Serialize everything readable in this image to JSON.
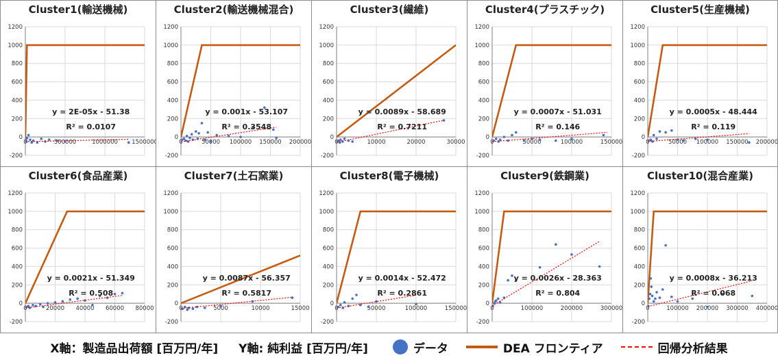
{
  "legend": {
    "x_axis_label": "X軸：製造品出荷額 [百万円/年]",
    "y_axis_label": "Y軸: 純利益 [百万円/年]",
    "data_label": "データ",
    "frontier_label": "DEA フロンティア",
    "regression_label": "回帰分析結果"
  },
  "colors": {
    "data": "#4472c4",
    "frontier": "#c55a11",
    "regression": "#ff0000"
  },
  "chart_data": [
    {
      "type": "scatter",
      "title": "Cluster1(輸送機械)",
      "xlim": [
        0,
        1500000
      ],
      "xticks": [
        0,
        500000,
        1000000,
        1500000
      ],
      "xtick_labels": [
        "0",
        "500000",
        "1000000",
        "1500000"
      ],
      "ylim": [
        -200,
        1200
      ],
      "yticks": [
        -200,
        0,
        200,
        400,
        600,
        800,
        1000,
        1200
      ],
      "equation": "y = 2E-05x - 51.38",
      "r2": "R² = 0.0107",
      "slope": 2e-05,
      "intercept": -51.38,
      "reg_x": [
        0,
        1300000
      ],
      "frontier": [
        [
          0,
          0
        ],
        [
          20000,
          1000
        ],
        [
          1500000,
          1000
        ]
      ],
      "points": [
        [
          5000,
          -40
        ],
        [
          10000,
          -20
        ],
        [
          15000,
          -50
        ],
        [
          20000,
          -10
        ],
        [
          40000,
          20
        ],
        [
          60000,
          -30
        ],
        [
          100000,
          -40
        ],
        [
          150000,
          -60
        ],
        [
          200000,
          -20
        ],
        [
          250000,
          -50
        ],
        [
          300000,
          -30
        ],
        [
          400000,
          -40
        ],
        [
          500000,
          -50
        ],
        [
          80000,
          -60
        ],
        [
          1300000,
          -60
        ]
      ]
    },
    {
      "type": "scatter",
      "title": "Cluster2(輸送機械混合)",
      "xlim": [
        0,
        200000
      ],
      "xticks": [
        0,
        50000,
        100000,
        150000,
        200000
      ],
      "xtick_labels": [
        "0",
        "50000",
        "100000",
        "150000",
        "200000"
      ],
      "ylim": [
        -200,
        1200
      ],
      "yticks": [
        -200,
        0,
        200,
        400,
        600,
        800,
        1000,
        1200
      ],
      "equation": "y = 0.001x - 53.107",
      "r2": "R² = 0.3548",
      "slope": 0.001,
      "intercept": -53.107,
      "reg_x": [
        0,
        160000
      ],
      "frontier": [
        [
          0,
          0
        ],
        [
          35000,
          1000
        ],
        [
          200000,
          1000
        ]
      ],
      "points": [
        [
          2000,
          -30
        ],
        [
          5000,
          -20
        ],
        [
          8000,
          -40
        ],
        [
          10000,
          10
        ],
        [
          12000,
          -50
        ],
        [
          15000,
          -10
        ],
        [
          18000,
          30
        ],
        [
          20000,
          -30
        ],
        [
          25000,
          60
        ],
        [
          28000,
          -20
        ],
        [
          30000,
          40
        ],
        [
          35000,
          150
        ],
        [
          40000,
          -30
        ],
        [
          45000,
          50
        ],
        [
          50000,
          -50
        ],
        [
          60000,
          20
        ],
        [
          80000,
          10
        ],
        [
          100000,
          0
        ],
        [
          120000,
          100
        ],
        [
          140000,
          320
        ],
        [
          155000,
          80
        ],
        [
          160000,
          -10
        ]
      ]
    },
    {
      "type": "scatter",
      "title": "Cluster3(繊維)",
      "xlim": [
        0,
        30000
      ],
      "xticks": [
        0,
        10000,
        20000,
        30000
      ],
      "xtick_labels": [
        "0",
        "10000",
        "20000",
        "30000"
      ],
      "ylim": [
        -200,
        1200
      ],
      "yticks": [
        -200,
        0,
        200,
        400,
        600,
        800,
        1000,
        1200
      ],
      "equation": "y = 0.0089x - 58.689",
      "r2": "R² = 0.7211",
      "slope": 0.0089,
      "intercept": -58.689,
      "reg_x": [
        0,
        27000
      ],
      "frontier": [
        [
          0,
          0
        ],
        [
          30000,
          1000
        ]
      ],
      "points": [
        [
          200,
          -50
        ],
        [
          500,
          -40
        ],
        [
          800,
          -60
        ],
        [
          1000,
          -30
        ],
        [
          1500,
          -50
        ],
        [
          2000,
          -20
        ],
        [
          3000,
          -40
        ],
        [
          4000,
          -50
        ],
        [
          27000,
          180
        ]
      ]
    },
    {
      "type": "scatter",
      "title": "Cluster4(プラスチック)",
      "xlim": [
        0,
        150000
      ],
      "xticks": [
        0,
        50000,
        100000,
        150000
      ],
      "xtick_labels": [
        "0",
        "50000",
        "100000",
        "150000"
      ],
      "ylim": [
        -200,
        1200
      ],
      "yticks": [
        -200,
        0,
        200,
        400,
        600,
        800,
        1000,
        1200
      ],
      "equation": "y = 0.0007x - 51.031",
      "r2": "R² = 0.146",
      "slope": 0.0007,
      "intercept": -51.031,
      "reg_x": [
        0,
        145000
      ],
      "frontier": [
        [
          0,
          0
        ],
        [
          30000,
          1000
        ],
        [
          150000,
          1000
        ]
      ],
      "points": [
        [
          2000,
          -40
        ],
        [
          5000,
          -20
        ],
        [
          8000,
          -50
        ],
        [
          10000,
          -30
        ],
        [
          15000,
          0
        ],
        [
          20000,
          -40
        ],
        [
          25000,
          20
        ],
        [
          30000,
          50
        ],
        [
          40000,
          -40
        ],
        [
          50000,
          -20
        ],
        [
          60000,
          -30
        ],
        [
          80000,
          -40
        ],
        [
          100000,
          -20
        ],
        [
          140000,
          20
        ]
      ]
    },
    {
      "type": "scatter",
      "title": "Cluster5(生産機械)",
      "xlim": [
        0,
        200000
      ],
      "xticks": [
        0,
        50000,
        100000,
        150000,
        200000
      ],
      "xtick_labels": [
        "0",
        "50000",
        "100000",
        "150000",
        "200000"
      ],
      "ylim": [
        -200,
        1200
      ],
      "yticks": [
        -200,
        0,
        200,
        400,
        600,
        800,
        1000,
        1200
      ],
      "equation": "y = 0.0005x - 48.444",
      "r2": "R² = 0.119",
      "slope": 0.0005,
      "intercept": -48.444,
      "reg_x": [
        0,
        170000
      ],
      "frontier": [
        [
          0,
          0
        ],
        [
          25000,
          1000
        ],
        [
          200000,
          1000
        ]
      ],
      "points": [
        [
          2000,
          -40
        ],
        [
          5000,
          -30
        ],
        [
          8000,
          -50
        ],
        [
          10000,
          20
        ],
        [
          15000,
          -20
        ],
        [
          20000,
          60
        ],
        [
          30000,
          50
        ],
        [
          40000,
          70
        ],
        [
          50000,
          -30
        ],
        [
          60000,
          -40
        ],
        [
          80000,
          -20
        ],
        [
          100000,
          -30
        ],
        [
          170000,
          -60
        ]
      ]
    },
    {
      "type": "scatter",
      "title": "Cluster6(食品産業)",
      "xlim": [
        0,
        80000
      ],
      "xticks": [
        0,
        20000,
        40000,
        60000,
        80000
      ],
      "xtick_labels": [
        "0",
        "20000",
        "40000",
        "60000",
        "80000"
      ],
      "ylim": [
        -200,
        1200
      ],
      "yticks": [
        -200,
        0,
        200,
        400,
        600,
        800,
        1000,
        1200
      ],
      "equation": "y = 0.0021x - 51.349",
      "r2": "R² = 0.508",
      "slope": 0.0021,
      "intercept": -51.349,
      "reg_x": [
        0,
        65000
      ],
      "frontier": [
        [
          0,
          0
        ],
        [
          28000,
          1000
        ],
        [
          80000,
          1000
        ]
      ],
      "points": [
        [
          1000,
          -40
        ],
        [
          2000,
          -30
        ],
        [
          3000,
          -50
        ],
        [
          5000,
          -20
        ],
        [
          7000,
          -30
        ],
        [
          10000,
          -10
        ],
        [
          12000,
          -40
        ],
        [
          15000,
          0
        ],
        [
          20000,
          10
        ],
        [
          25000,
          20
        ],
        [
          30000,
          40
        ],
        [
          35000,
          50
        ],
        [
          40000,
          30
        ],
        [
          45000,
          -20
        ],
        [
          50000,
          80
        ],
        [
          55000,
          60
        ],
        [
          60000,
          100
        ],
        [
          65000,
          110
        ]
      ]
    },
    {
      "type": "scatter",
      "title": "Cluster7(土石窯業)",
      "xlim": [
        0,
        15000
      ],
      "xticks": [
        0,
        5000,
        10000,
        15000
      ],
      "xtick_labels": [
        "0",
        "5000",
        "10000",
        "15000"
      ],
      "ylim": [
        -200,
        1200
      ],
      "yticks": [
        -200,
        0,
        200,
        400,
        600,
        800,
        1000,
        1200
      ],
      "equation": "y = 0.0087x - 56.357",
      "r2": "R² = 0.5817",
      "slope": 0.0087,
      "intercept": -56.357,
      "reg_x": [
        0,
        14000
      ],
      "frontier": [
        [
          0,
          0
        ],
        [
          15000,
          520
        ]
      ],
      "points": [
        [
          200,
          -60
        ],
        [
          500,
          -40
        ],
        [
          800,
          -70
        ],
        [
          1000,
          -50
        ],
        [
          1500,
          -60
        ],
        [
          2000,
          -40
        ],
        [
          3000,
          -50
        ],
        [
          5000,
          -30
        ],
        [
          9000,
          20
        ],
        [
          14000,
          60
        ]
      ]
    },
    {
      "type": "scatter",
      "title": "Cluster8(電子機械)",
      "xlim": [
        0,
        150000
      ],
      "xticks": [
        0,
        50000,
        100000,
        150000
      ],
      "xtick_labels": [
        "0",
        "50000",
        "100000",
        "150000"
      ],
      "ylim": [
        -200,
        1200
      ],
      "yticks": [
        -200,
        0,
        200,
        400,
        600,
        800,
        1000,
        1200
      ],
      "equation": "y = 0.0014x - 52.472",
      "r2": "R² = 0.2861",
      "slope": 0.0014,
      "intercept": -52.472,
      "reg_x": [
        0,
        100000
      ],
      "frontier": [
        [
          0,
          0
        ],
        [
          30000,
          1000
        ],
        [
          150000,
          1000
        ]
      ],
      "points": [
        [
          2000,
          -40
        ],
        [
          5000,
          -20
        ],
        [
          8000,
          -50
        ],
        [
          10000,
          10
        ],
        [
          15000,
          -30
        ],
        [
          20000,
          50
        ],
        [
          25000,
          90
        ],
        [
          30000,
          -20
        ],
        [
          40000,
          -40
        ],
        [
          50000,
          20
        ],
        [
          100000,
          -10
        ]
      ]
    },
    {
      "type": "scatter",
      "title": "Cluster9(鉄鋼業)",
      "xlim": [
        0,
        300000
      ],
      "xticks": [
        0,
        100000,
        200000,
        300000
      ],
      "xtick_labels": [
        "0",
        "100000",
        "200000",
        "300000"
      ],
      "ylim": [
        -200,
        1200
      ],
      "yticks": [
        -200,
        0,
        200,
        400,
        600,
        800,
        1000,
        1200
      ],
      "equation": "y = 0.0026x - 28.363",
      "r2": "R² = 0.804",
      "slope": 0.0026,
      "intercept": -28.363,
      "reg_x": [
        0,
        270000
      ],
      "frontier": [
        [
          0,
          0
        ],
        [
          30000,
          1000
        ],
        [
          300000,
          1000
        ]
      ],
      "points": [
        [
          2000,
          -30
        ],
        [
          5000,
          0
        ],
        [
          8000,
          20
        ],
        [
          10000,
          30
        ],
        [
          15000,
          50
        ],
        [
          20000,
          10
        ],
        [
          30000,
          60
        ],
        [
          40000,
          250
        ],
        [
          50000,
          300
        ],
        [
          60000,
          250
        ],
        [
          120000,
          390
        ],
        [
          160000,
          640
        ],
        [
          200000,
          530
        ],
        [
          270000,
          400
        ]
      ]
    },
    {
      "type": "scatter",
      "title": "Cluster10(混合産業)",
      "xlim": [
        0,
        400000
      ],
      "xticks": [
        0,
        100000,
        200000,
        300000,
        400000
      ],
      "xtick_labels": [
        "0",
        "100000",
        "200000",
        "300000",
        "400000"
      ],
      "ylim": [
        -200,
        1200
      ],
      "yticks": [
        -200,
        0,
        200,
        400,
        600,
        800,
        1000,
        1200
      ],
      "equation": "y = 0.0008x - 36.213",
      "r2": "R² = 0.068",
      "slope": 0.0008,
      "intercept": -36.213,
      "reg_x": [
        0,
        350000
      ],
      "frontier": [
        [
          0,
          0
        ],
        [
          20000,
          1000
        ],
        [
          400000,
          1000
        ]
      ],
      "points": [
        [
          2000,
          -30
        ],
        [
          5000,
          50
        ],
        [
          8000,
          100
        ],
        [
          10000,
          270
        ],
        [
          12000,
          180
        ],
        [
          15000,
          80
        ],
        [
          20000,
          20
        ],
        [
          25000,
          50
        ],
        [
          30000,
          120
        ],
        [
          40000,
          60
        ],
        [
          50000,
          150
        ],
        [
          60000,
          630
        ],
        [
          80000,
          70
        ],
        [
          100000,
          20
        ],
        [
          150000,
          50
        ],
        [
          200000,
          -40
        ],
        [
          250000,
          100
        ],
        [
          350000,
          80
        ]
      ]
    }
  ]
}
